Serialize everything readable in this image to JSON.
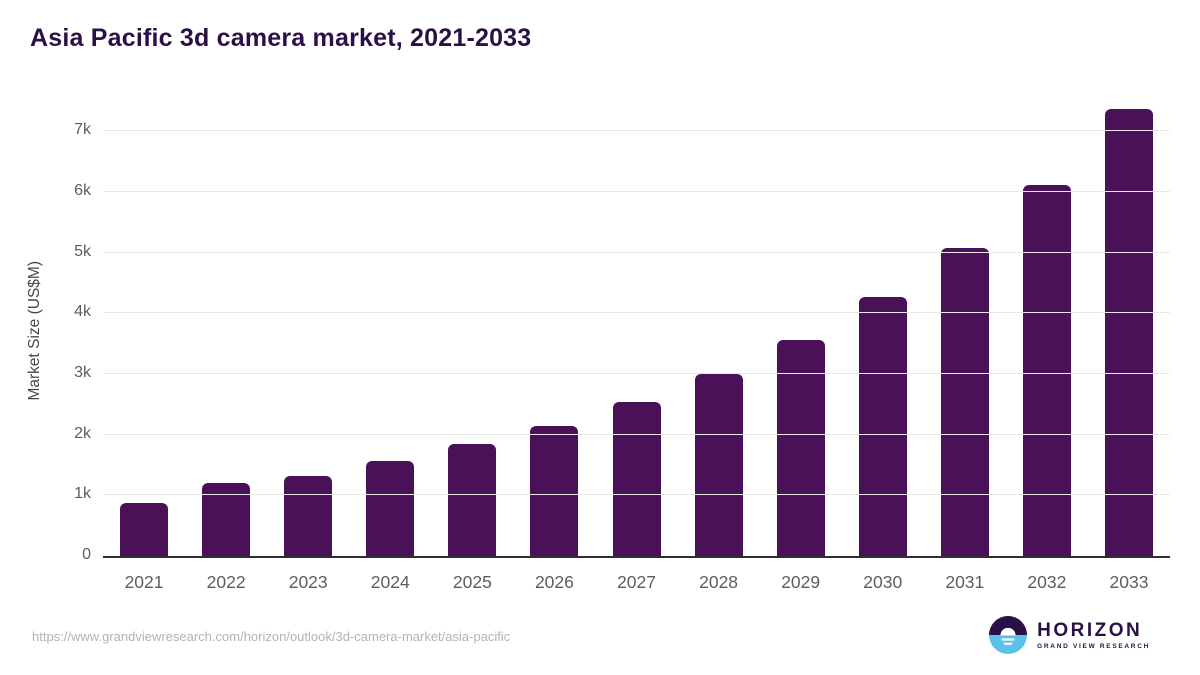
{
  "title": "Asia Pacific 3d camera market, 2021-2033",
  "source_url": "https://www.grandviewresearch.com/horizon/outlook/3d-camera-market/asia-pacific",
  "logo": {
    "icon": "horizon-sun-icon",
    "name": "HORIZON",
    "subtitle": "GRAND VIEW RESEARCH"
  },
  "colors": {
    "bar": "#4a1158",
    "title": "#2b1045",
    "grid": "#e9e9e9",
    "axis": "#2e2e2e",
    "tick": "#5d5d5d",
    "logo_purple": "#2b1045",
    "logo_blue": "#5ac2ea"
  },
  "chart_data": {
    "type": "bar",
    "title": "Asia Pacific 3d camera market, 2021-2033",
    "categories": [
      "2021",
      "2022",
      "2023",
      "2024",
      "2025",
      "2026",
      "2027",
      "2028",
      "2029",
      "2030",
      "2031",
      "2032",
      "2033"
    ],
    "values": [
      870,
      1200,
      1320,
      1575,
      1840,
      2150,
      2545,
      3000,
      3565,
      4265,
      5080,
      6115,
      7370
    ],
    "xlabel": "",
    "ylabel": "Market Size (US$M)",
    "ylim": [
      0,
      7500
    ],
    "yticks": [
      0,
      1000,
      2000,
      3000,
      4000,
      5000,
      6000,
      7000
    ],
    "ytick_labels": [
      "0",
      "1k",
      "2k",
      "3k",
      "4k",
      "5k",
      "6k",
      "7k"
    ],
    "grid": true,
    "legend": false,
    "bar_color": "#4a1158"
  }
}
